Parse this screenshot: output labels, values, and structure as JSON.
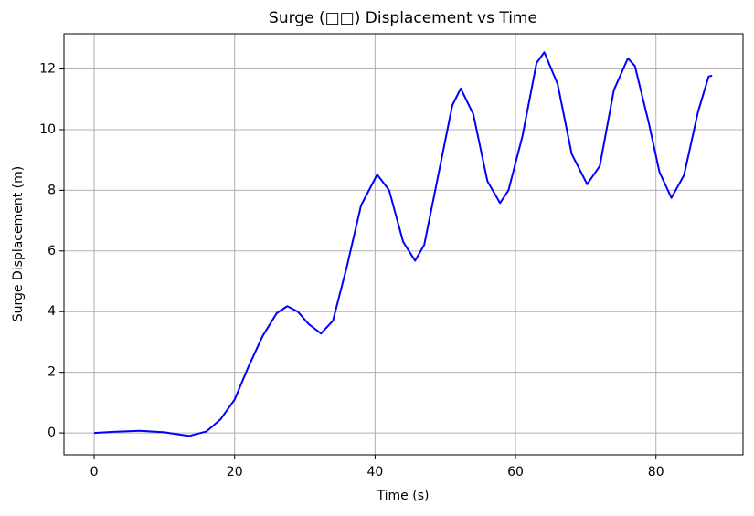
{
  "chart_data": {
    "type": "line",
    "title": "Surge (□□) Displacement vs Time",
    "x_label": "Time (s)",
    "y_label": "Surge Displacement (m)",
    "x": [
      0,
      3,
      6.5,
      10,
      13.5,
      16,
      18,
      20,
      22,
      24,
      26,
      27.5,
      29,
      30.5,
      32.3,
      34,
      36,
      38,
      40.3,
      42,
      44,
      45.7,
      47,
      49,
      51,
      52.2,
      54,
      56,
      57.8,
      59,
      61,
      63,
      64.1,
      66,
      68,
      70.2,
      72,
      74,
      76,
      77,
      79,
      80.5,
      82.2,
      84,
      86,
      87.5,
      88
    ],
    "series": [
      {
        "name": "Surge",
        "color": "#0000ff",
        "values": [
          0,
          0.04,
          0.07,
          0.02,
          -0.1,
          0.05,
          0.45,
          1.1,
          2.2,
          3.2,
          3.95,
          4.18,
          4.0,
          3.6,
          3.28,
          3.7,
          5.5,
          7.5,
          8.52,
          8.0,
          6.3,
          5.68,
          6.2,
          8.5,
          10.8,
          11.36,
          10.5,
          8.3,
          7.58,
          8.0,
          9.8,
          12.2,
          12.55,
          11.5,
          9.2,
          8.2,
          8.8,
          11.3,
          12.35,
          12.1,
          10.2,
          8.6,
          7.75,
          8.5,
          10.6,
          11.75,
          11.78
        ]
      }
    ],
    "xlim": [
      -4.3,
      92.4
    ],
    "ylim": [
      -0.72,
      13.16
    ],
    "xticks": [
      0,
      20,
      40,
      60,
      80
    ],
    "yticks": [
      0,
      2,
      4,
      6,
      8,
      10,
      12
    ],
    "grid": true
  }
}
